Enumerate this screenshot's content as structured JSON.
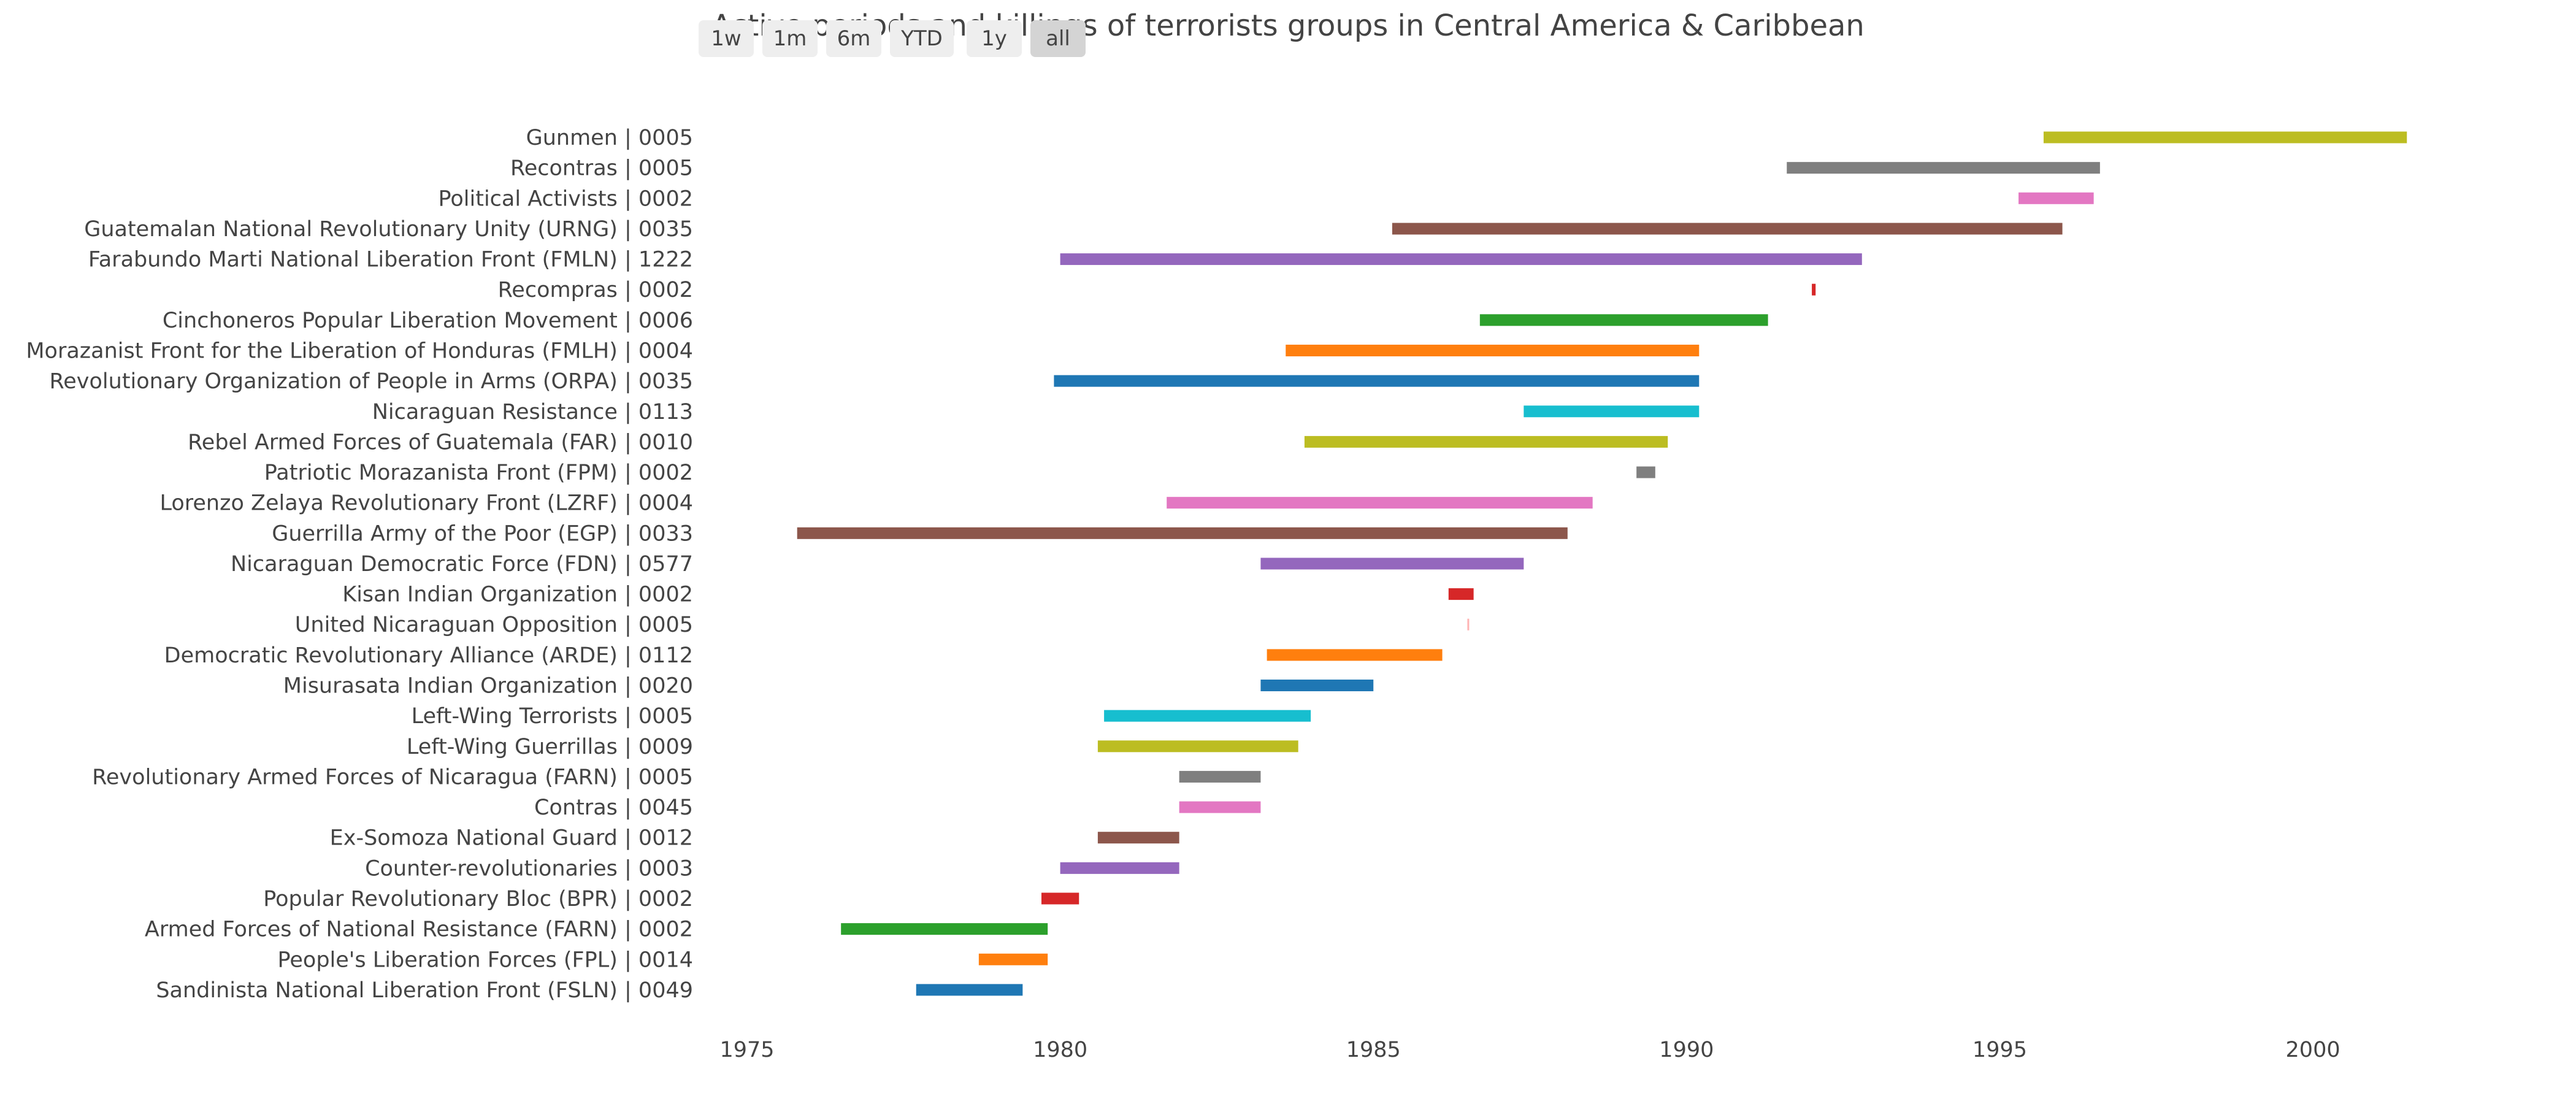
{
  "range_selector": {
    "buttons": [
      {
        "label": "1w",
        "active": false
      },
      {
        "label": "1m",
        "active": false
      },
      {
        "label": "6m",
        "active": false
      },
      {
        "label": "YTD",
        "active": false
      },
      {
        "label": "1y",
        "active": false
      },
      {
        "label": "all",
        "active": true
      }
    ]
  },
  "chart_data": {
    "type": "bar",
    "orientation": "horizontal-timeline",
    "title": "Active periods and killings of terrorists groups in Central America & Caribbean",
    "xlabel": "",
    "ylabel": "",
    "xlim": [
      1975.0,
      2004.2
    ],
    "x_ticks": [
      "1975",
      "1980",
      "1985",
      "1990",
      "1995",
      "2000"
    ],
    "x_tick_values": [
      1975,
      1980,
      1985,
      1990,
      1995,
      2000
    ],
    "grid": false,
    "legend": "none",
    "series": [
      {
        "label": "Gunmen | 0005",
        "start": 1995.7,
        "end": 2001.5,
        "color": "#bcbd22"
      },
      {
        "label": "Recontras | 0005",
        "start": 1991.6,
        "end": 1996.6,
        "color": "#7f7f7f"
      },
      {
        "label": "Political Activists | 0002",
        "start": 1995.3,
        "end": 1996.5,
        "color": "#e377c2"
      },
      {
        "label": "Guatemalan National Revolutionary Unity (URNG) | 0035",
        "start": 1985.3,
        "end": 1996.0,
        "color": "#8c564b"
      },
      {
        "label": "Farabundo Marti National Liberation Front (FMLN) | 1222",
        "start": 1980.0,
        "end": 1992.8,
        "color": "#9467bd"
      },
      {
        "label": "Recompras | 0002",
        "start": 1992.0,
        "end": 1992.06,
        "color": "#d62728"
      },
      {
        "label": "Cinchoneros Popular Liberation Movement | 0006",
        "start": 1986.7,
        "end": 1991.3,
        "color": "#2ca02c"
      },
      {
        "label": "Morazanist Front for the Liberation of Honduras (FMLH) | 0004",
        "start": 1983.6,
        "end": 1990.2,
        "color": "#ff7f0e"
      },
      {
        "label": "Revolutionary Organization of People in Arms (ORPA) | 0035",
        "start": 1979.9,
        "end": 1990.2,
        "color": "#1f77b4"
      },
      {
        "label": "Nicaraguan Resistance | 0113",
        "start": 1987.4,
        "end": 1990.2,
        "color": "#17becf"
      },
      {
        "label": "Rebel Armed Forces of Guatemala (FAR) | 0010",
        "start": 1983.9,
        "end": 1989.7,
        "color": "#bcbd22"
      },
      {
        "label": "Patriotic Morazanista Front (FPM) | 0002",
        "start": 1989.2,
        "end": 1989.5,
        "color": "#7f7f7f"
      },
      {
        "label": "Lorenzo Zelaya Revolutionary Front (LZRF) | 0004",
        "start": 1981.7,
        "end": 1988.5,
        "color": "#e377c2"
      },
      {
        "label": "Guerrilla Army of the Poor (EGP) | 0033",
        "start": 1975.8,
        "end": 1988.1,
        "color": "#8c564b"
      },
      {
        "label": "Nicaraguan Democratic Force (FDN) | 0577",
        "start": 1983.2,
        "end": 1987.4,
        "color": "#9467bd"
      },
      {
        "label": "Kisan Indian Organization | 0002",
        "start": 1986.2,
        "end": 1986.6,
        "color": "#d62728"
      },
      {
        "label": "United Nicaraguan Opposition | 0005",
        "start": 1986.5,
        "end": 1986.52,
        "color": "#ffb3b3"
      },
      {
        "label": "Democratic Revolutionary Alliance (ARDE) | 0112",
        "start": 1983.3,
        "end": 1986.1,
        "color": "#ff7f0e"
      },
      {
        "label": "Misurasata Indian Organization | 0020",
        "start": 1983.2,
        "end": 1985.0,
        "color": "#1f77b4"
      },
      {
        "label": "Left-Wing Terrorists | 0005",
        "start": 1980.7,
        "end": 1984.0,
        "color": "#17becf"
      },
      {
        "label": "Left-Wing Guerrillas | 0009",
        "start": 1980.6,
        "end": 1983.8,
        "color": "#bcbd22"
      },
      {
        "label": "Revolutionary Armed Forces of Nicaragua (FARN) | 0005",
        "start": 1981.9,
        "end": 1983.2,
        "color": "#7f7f7f"
      },
      {
        "label": "Contras | 0045",
        "start": 1981.9,
        "end": 1983.2,
        "color": "#e377c2"
      },
      {
        "label": "Ex-Somoza National Guard | 0012",
        "start": 1980.6,
        "end": 1981.9,
        "color": "#8c564b"
      },
      {
        "label": "Counter-revolutionaries | 0003",
        "start": 1980.0,
        "end": 1981.9,
        "color": "#9467bd"
      },
      {
        "label": "Popular Revolutionary Bloc (BPR) | 0002",
        "start": 1979.7,
        "end": 1980.3,
        "color": "#d62728"
      },
      {
        "label": "Armed Forces of National Resistance (FARN) | 0002",
        "start": 1976.5,
        "end": 1979.8,
        "color": "#2ca02c"
      },
      {
        "label": "People's Liberation Forces (FPL) | 0014",
        "start": 1978.7,
        "end": 1979.8,
        "color": "#ff7f0e"
      },
      {
        "label": "Sandinista National Liberation Front (FSLN) | 0049",
        "start": 1977.7,
        "end": 1979.4,
        "color": "#1f77b4"
      }
    ]
  }
}
